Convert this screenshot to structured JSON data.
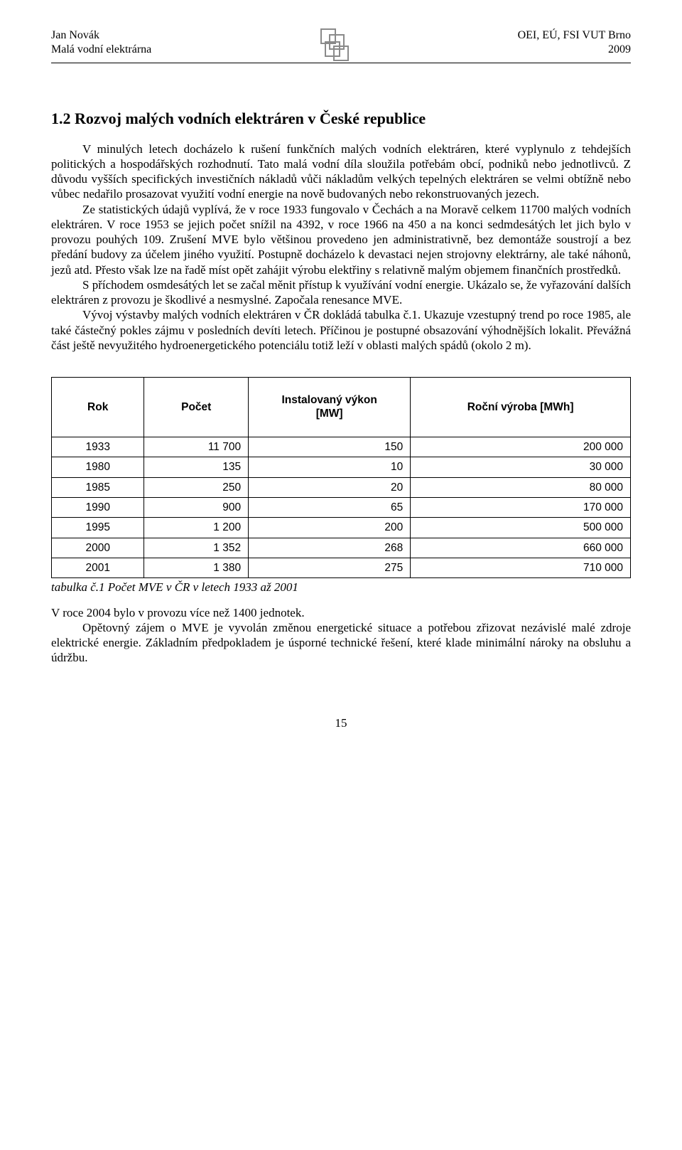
{
  "header": {
    "left_line1": "Jan Novák",
    "left_line2": "Malá vodní elektrárna",
    "right_line1": "OEI, EÚ, FSI VUT Brno",
    "right_line2": "2009"
  },
  "section": {
    "heading": "1.2 Rozvoj malých vodních elektráren v České republice",
    "para1": "V minulých letech docházelo k rušení funkčních malých vodních elektráren, které vyplynulo z tehdejších politických a hospodářských rozhodnutí. Tato malá vodní díla sloužila potřebám obcí, podniků nebo jednotlivců. Z důvodu vyšších specifických investičních nákladů vůči nákladům velkých tepelných elektráren se velmi obtížně nebo vůbec nedařilo prosazovat využití vodní energie na nově budovaných nebo rekonstruovaných jezech.",
    "para2": "Ze statistických údajů vyplívá, že v roce 1933 fungovalo v Čechách a na Moravě celkem 11700 malých vodních elektráren. V roce 1953 se jejich počet snížil na 4392, v roce 1966 na 450 a na konci sedmdesátých let jich bylo v provozu pouhých 109. Zrušení MVE bylo většinou provedeno jen administrativně, bez demontáže soustrojí a bez předání budovy za účelem jiného využití. Postupně docházelo k devastaci nejen strojovny elektrárny, ale také náhonů, jezů atd. Přesto však lze na řadě míst opět zahájit výrobu elektřiny s relativně malým objemem finančních prostředků.",
    "para3": "S příchodem osmdesátých let se začal měnit přístup k využívání vodní energie. Ukázalo se, že vyřazování dalších elektráren z provozu je škodlivé a nesmyslné. Započala renesance MVE.",
    "para4": "Vývoj výstavby malých vodních elektráren v ČR dokládá tabulka č.1. Ukazuje vzestupný trend po roce 1985, ale také částečný  pokles zájmu v posledních devíti letech. Příčinou je postupné obsazování výhodnějších lokalit. Převážná část ještě nevyužitého hydroenergetického potenciálu totiž leží v oblasti malých spádů (okolo 2 m)."
  },
  "table": {
    "type": "table",
    "columns": [
      {
        "label": "Rok",
        "align": "center",
        "width": "16%"
      },
      {
        "label": "Počet",
        "align": "right",
        "width": "18%"
      },
      {
        "label": "Instalovaný výkon\n[MW]",
        "align": "right",
        "width": "28%"
      },
      {
        "label": "Roční výroba [MWh]",
        "align": "right",
        "width": "38%"
      }
    ],
    "rows": [
      [
        "1933",
        "11 700",
        "150",
        "200 000"
      ],
      [
        "1980",
        "135",
        "10",
        "30 000"
      ],
      [
        "1985",
        "250",
        "20",
        "80 000"
      ],
      [
        "1990",
        "900",
        "65",
        "170 000"
      ],
      [
        "1995",
        "1 200",
        "200",
        "500 000"
      ],
      [
        "2000",
        "1 352",
        "268",
        "660 000"
      ],
      [
        "2001",
        "1 380",
        "275",
        "710 000"
      ]
    ],
    "caption": "tabulka č.1 Počet MVE v ČR v letech 1933 až 2001",
    "header_font_family": "Arial",
    "header_fontsize": 15.5,
    "cell_fontsize": 15.5,
    "border_color": "#000000",
    "background_color": "#ffffff"
  },
  "after_table": {
    "line1": "V roce 2004 bylo v provozu více než 1400 jednotek.",
    "para5": "Opětovný zájem o MVE je vyvolán změnou energetické situace a potřebou zřizovat nezávislé malé zdroje elektrické energie. Základním předpokladem je úsporné technické řešení, které klade minimální nároky na obsluhu a údržbu."
  },
  "page_number": "15",
  "colors": {
    "text": "#000000",
    "background": "#ffffff",
    "logo_stroke": "#8a8a8a",
    "table_border": "#000000"
  },
  "typography": {
    "body_font": "Times New Roman",
    "body_size_pt": 12,
    "heading_size_pt": 15,
    "table_font": "Arial"
  }
}
